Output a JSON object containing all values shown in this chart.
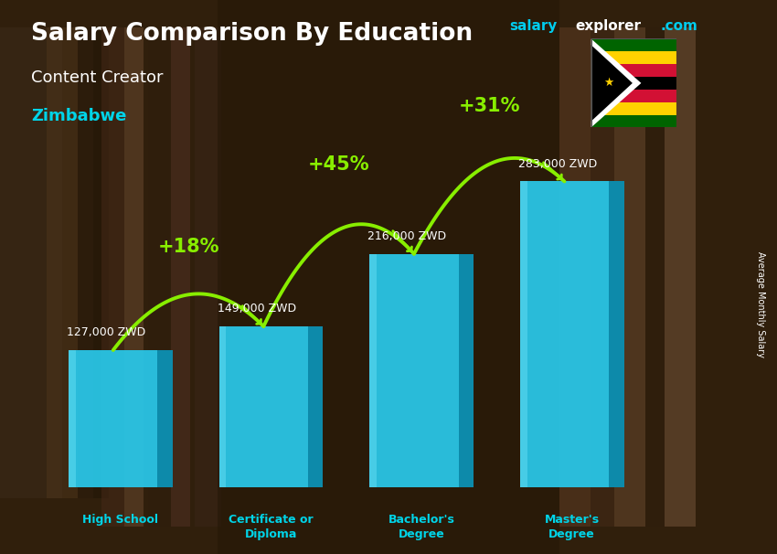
{
  "title": "Salary Comparison By Education",
  "subtitle": "Content Creator",
  "country": "Zimbabwe",
  "ylabel": "Average Monthly Salary",
  "categories": [
    "High School",
    "Certificate or\nDiploma",
    "Bachelor's\nDegree",
    "Master's\nDegree"
  ],
  "values": [
    127000,
    149000,
    216000,
    283000
  ],
  "value_labels": [
    "127,000 ZWD",
    "149,000 ZWD",
    "216,000 ZWD",
    "283,000 ZWD"
  ],
  "pct_labels": [
    "+18%",
    "+45%",
    "+31%"
  ],
  "bar_color_front": "#29c5e6",
  "bar_color_side": "#0d8aaa",
  "bar_color_top": "#55d8f5",
  "bar_highlight": "#70e5ff",
  "bg_color": "#5a3d22",
  "title_color": "#ffffff",
  "subtitle_color": "#ffffff",
  "country_color": "#00d4e8",
  "value_color": "#ffffff",
  "pct_color": "#88ee00",
  "arrow_color": "#88ee00",
  "brand_salary_color": "#00ccee",
  "brand_explorer_color": "#ffffff",
  "brand_com_color": "#00ccee"
}
